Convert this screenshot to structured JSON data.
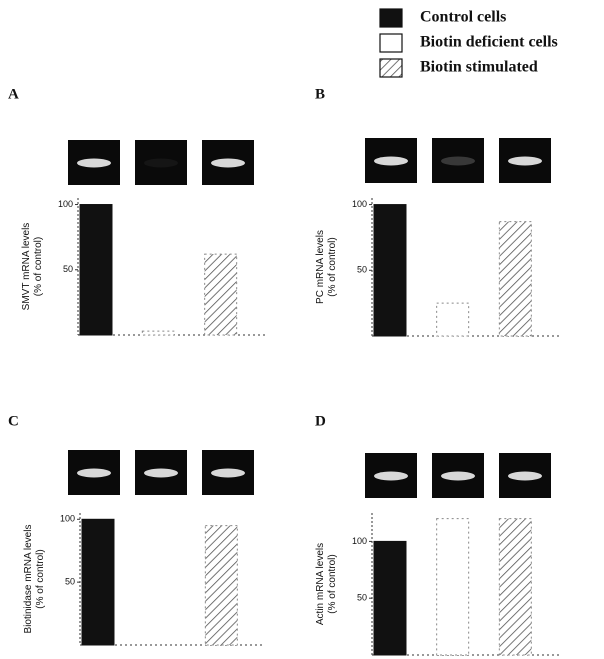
{
  "legend": {
    "items": [
      {
        "name": "Control cells",
        "fill": "#111111"
      },
      {
        "name": "Biotin deficient cells",
        "fill": "#ffffff"
      },
      {
        "name": "Biotin stimulated",
        "fill": "hatch"
      }
    ]
  },
  "chart_data": [
    {
      "type": "bar",
      "label": "A",
      "ylabel": "SMVT mRNA levels",
      "ylabel2": "(% of control)",
      "values": [
        100,
        3,
        62
      ],
      "ylim": [
        0,
        105
      ],
      "yticks": [
        50,
        100
      ]
    },
    {
      "type": "bar",
      "label": "B",
      "ylabel": "PC mRNA levels",
      "ylabel2": "(% of control)",
      "values": [
        100,
        25,
        87
      ],
      "ylim": [
        0,
        105
      ],
      "yticks": [
        50,
        100
      ]
    },
    {
      "type": "bar",
      "label": "C",
      "ylabel": "Biotinidase mRNA levels",
      "ylabel2": "(% of control)",
      "values": [
        100,
        0,
        95
      ],
      "ylim": [
        0,
        105
      ],
      "yticks": [
        50,
        100
      ]
    },
    {
      "type": "bar",
      "label": "D",
      "ylabel": "Actin mRNA levels",
      "ylabel2": "(% of control)",
      "values": [
        100,
        120,
        120
      ],
      "ylim": [
        0,
        125
      ],
      "yticks": [
        50,
        100
      ]
    }
  ]
}
